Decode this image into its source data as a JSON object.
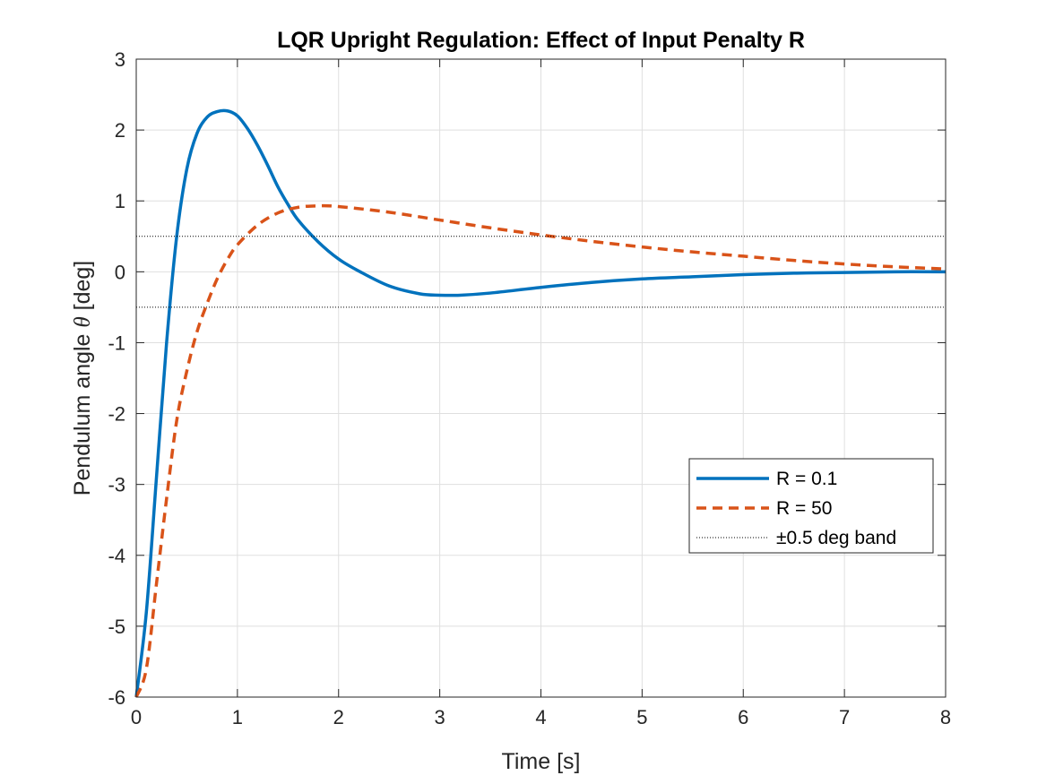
{
  "chart_data": {
    "type": "line",
    "title": "LQR Upright Regulation: Effect of Input Penalty R",
    "xlabel": "Time [s]",
    "ylabel_prefix": "Pendulum angle ",
    "ylabel_symbol": "θ",
    "ylabel_suffix": " [deg]",
    "xlim": [
      0,
      8
    ],
    "ylim": [
      -6,
      3
    ],
    "xticks": [
      0,
      1,
      2,
      3,
      4,
      5,
      6,
      7,
      8
    ],
    "yticks": [
      -6,
      -5,
      -4,
      -3,
      -2,
      -1,
      0,
      1,
      2,
      3
    ],
    "grid": true,
    "legend_position": "right",
    "series": [
      {
        "name": "R = 0.1",
        "color": "#0072bd",
        "style": "solid",
        "x": [
          0,
          0.1,
          0.2,
          0.3,
          0.4,
          0.5,
          0.6,
          0.7,
          0.8,
          0.9,
          1.0,
          1.1,
          1.2,
          1.3,
          1.4,
          1.5,
          1.6,
          1.8,
          2.0,
          2.2,
          2.5,
          2.8,
          3.0,
          3.2,
          3.5,
          4.0,
          4.5,
          5.0,
          5.5,
          6.0,
          6.5,
          7.0,
          7.5,
          8.0
        ],
        "y": [
          -6.0,
          -4.8,
          -2.9,
          -1.0,
          0.5,
          1.45,
          1.95,
          2.18,
          2.26,
          2.27,
          2.2,
          2.02,
          1.78,
          1.5,
          1.2,
          0.95,
          0.73,
          0.42,
          0.18,
          0.01,
          -0.2,
          -0.31,
          -0.33,
          -0.33,
          -0.3,
          -0.22,
          -0.15,
          -0.1,
          -0.07,
          -0.04,
          -0.02,
          -0.01,
          0.0,
          0.0
        ]
      },
      {
        "name": "R = 50",
        "color": "#d95319",
        "style": "dashed",
        "x": [
          0,
          0.1,
          0.2,
          0.3,
          0.4,
          0.5,
          0.6,
          0.7,
          0.8,
          0.9,
          1.0,
          1.2,
          1.4,
          1.6,
          1.8,
          2.0,
          2.5,
          3.0,
          3.5,
          4.0,
          4.5,
          5.0,
          5.5,
          6.0,
          6.5,
          7.0,
          7.5,
          8.0
        ],
        "y": [
          -6.0,
          -5.6,
          -4.4,
          -3.2,
          -2.1,
          -1.4,
          -0.85,
          -0.45,
          -0.1,
          0.17,
          0.38,
          0.66,
          0.83,
          0.91,
          0.93,
          0.92,
          0.84,
          0.73,
          0.62,
          0.52,
          0.43,
          0.35,
          0.28,
          0.22,
          0.16,
          0.11,
          0.07,
          0.04
        ]
      },
      {
        "name": "±0.5 deg band",
        "color": "#000000",
        "style": "dotted",
        "band": [
          -0.5,
          0.5
        ]
      }
    ]
  }
}
